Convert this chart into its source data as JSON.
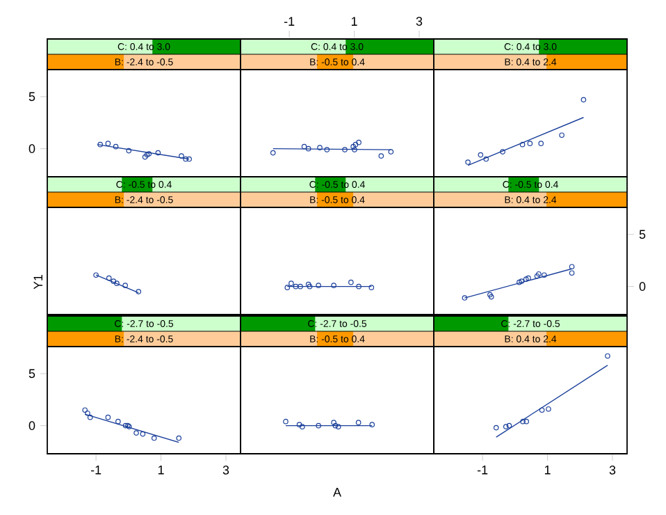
{
  "chart_data": [
    {
      "type": "scatter",
      "title": "C: 0.4 to 3.0",
      "subtitle": "B: -2.4 to -0.5",
      "xlim": [
        -2.5,
        3.45
      ],
      "ylim": [
        -2.7,
        7.6
      ],
      "yticks": [
        0,
        5
      ],
      "tick_labels": "y",
      "series": [
        {
          "marker": "circle",
          "color": "#1a3f9a",
          "x": [
            -0.87,
            -0.63,
            -0.39,
            0.01,
            0.51,
            0.57,
            0.63,
            0.91,
            1.63,
            1.76,
            1.87
          ],
          "values": [
            0.4,
            0.5,
            0.2,
            -0.2,
            -0.8,
            -0.6,
            -0.5,
            -0.4,
            -0.7,
            -1.0,
            -1.0
          ]
        },
        {
          "type": "line",
          "color": "#1a3f9a",
          "x": [
            -0.96,
            1.87
          ],
          "values": [
            0.4,
            -1.0
          ]
        }
      ]
    },
    {
      "type": "scatter",
      "title": "C: 0.4 to 3.0",
      "subtitle": "B: -0.5 to 0.4",
      "xlim": [
        -2.5,
        3.45
      ],
      "ylim": [
        -2.7,
        7.6
      ],
      "xticks": [
        -1,
        1,
        3
      ],
      "tick_labels": "x",
      "series": [
        {
          "marker": "circle",
          "color": "#1a3f9a",
          "x": [
            -1.5,
            -0.54,
            -0.41,
            -0.06,
            0.16,
            0.71,
            0.97,
            1.01,
            1.04,
            1.14,
            1.83,
            2.13
          ],
          "values": [
            -0.4,
            0.2,
            0,
            0.1,
            -0.1,
            -0.1,
            0.2,
            -0.1,
            0.4,
            0.6,
            -0.7,
            -0.3
          ]
        },
        {
          "type": "line",
          "color": "#1a3f9a",
          "x": [
            -1.5,
            2.13
          ],
          "values": [
            0,
            -0.1
          ]
        }
      ]
    },
    {
      "type": "scatter",
      "title": "C: 0.4 to 3.0",
      "subtitle": "B: 0.4 to 2.4",
      "xlim": [
        -2.5,
        3.45
      ],
      "ylim": [
        -2.7,
        7.6
      ],
      "tick_labels": false,
      "series": [
        {
          "marker": "circle",
          "color": "#1a3f9a",
          "x": [
            -1.45,
            -1.06,
            -0.89,
            -0.38,
            0.23,
            0.46,
            0.8,
            1.44,
            2.11
          ],
          "values": [
            -1.3,
            -0.6,
            -1.0,
            -0.3,
            0.4,
            0.5,
            0.5,
            1.3,
            4.7
          ]
        },
        {
          "type": "line",
          "color": "#1a3f9a",
          "x": [
            -1.45,
            2.11
          ],
          "values": [
            -1.6,
            3.0
          ]
        }
      ]
    },
    {
      "type": "scatter",
      "title": "C: -0.5 to 0.4",
      "subtitle": "B: -2.4 to -0.5",
      "ylabel": "Y1",
      "xlim": [
        -2.5,
        3.45
      ],
      "ylim": [
        -2.7,
        7.6
      ],
      "tick_labels": false,
      "series": [
        {
          "marker": "circle",
          "color": "#1a3f9a",
          "x": [
            -1.0,
            -0.6,
            -0.46,
            -0.36,
            -0.1,
            0.31
          ],
          "values": [
            1.1,
            0.8,
            0.5,
            0.3,
            0.1,
            -0.5
          ]
        },
        {
          "type": "line",
          "color": "#1a3f9a",
          "x": [
            -1.0,
            0.31
          ],
          "values": [
            1.1,
            -0.6
          ]
        }
      ]
    },
    {
      "type": "scatter",
      "title": "C: -0.5 to 0.4",
      "subtitle": "B: -0.5 to 0.4",
      "xlim": [
        -2.5,
        3.45
      ],
      "ylim": [
        -2.7,
        7.6
      ],
      "tick_labels": false,
      "series": [
        {
          "marker": "circle",
          "color": "#1a3f9a",
          "x": [
            -1.06,
            -0.94,
            -0.8,
            -0.66,
            -0.41,
            -0.37,
            -0.1,
            0.37,
            0.9,
            1.14,
            1.53
          ],
          "values": [
            -0.1,
            0.3,
            0,
            0,
            0.2,
            0,
            0.1,
            0.1,
            0.4,
            0,
            -0.1
          ]
        },
        {
          "type": "line",
          "color": "#1a3f9a",
          "x": [
            -1.06,
            1.53
          ],
          "values": [
            0,
            0
          ]
        }
      ]
    },
    {
      "type": "scatter",
      "title": "C: -0.5 to 0.4",
      "subtitle": "B: 0.4 to 2.4",
      "xlim": [
        -2.5,
        3.45
      ],
      "ylim": [
        -2.7,
        7.6
      ],
      "yticks": [
        0,
        5
      ],
      "tick_labels": "y",
      "series": [
        {
          "marker": "circle",
          "color": "#1a3f9a",
          "x": [
            -1.55,
            -0.77,
            -0.73,
            0.13,
            0.2,
            0.34,
            0.41,
            0.68,
            0.73,
            0.9,
            1.75,
            1.75
          ],
          "values": [
            -1.1,
            -0.8,
            -1.0,
            0.4,
            0.5,
            0.7,
            0.8,
            1.0,
            1.2,
            1.1,
            1.9,
            1.3
          ]
        },
        {
          "type": "line",
          "color": "#1a3f9a",
          "x": [
            -1.55,
            1.75
          ],
          "values": [
            -1.1,
            1.7
          ]
        }
      ]
    },
    {
      "type": "scatter",
      "title": "C: -2.7 to -0.5",
      "subtitle": "B: -2.4 to -0.5",
      "xlim": [
        -2.5,
        3.45
      ],
      "ylim": [
        -2.7,
        7.6
      ],
      "xticks": [
        -1,
        1,
        3
      ],
      "yticks": [
        0,
        5
      ],
      "series": [
        {
          "marker": "circle",
          "color": "#1a3f9a",
          "x": [
            -1.34,
            -1.26,
            -1.18,
            -0.63,
            -0.32,
            -0.09,
            -0.02,
            0.02,
            0.24,
            0.44,
            0.79,
            1.55
          ],
          "values": [
            1.5,
            1.2,
            0.8,
            0.8,
            0.4,
            0,
            0,
            -0.1,
            -0.7,
            -0.8,
            -1.2,
            -1.2
          ]
        },
        {
          "type": "line",
          "color": "#1a3f9a",
          "x": [
            -1.34,
            1.55
          ],
          "values": [
            1.1,
            -1.6
          ]
        }
      ]
    },
    {
      "type": "scatter",
      "title": "C: -2.7 to -0.5",
      "subtitle": "B: -0.5 to 0.4",
      "xlabel": "A",
      "xlim": [
        -2.5,
        3.45
      ],
      "ylim": [
        -2.7,
        7.6
      ],
      "tick_labels": false,
      "series": [
        {
          "marker": "circle",
          "color": "#1a3f9a",
          "x": [
            -1.11,
            -0.69,
            -0.6,
            -0.1,
            0.37,
            0.42,
            0.51,
            1.13,
            1.55
          ],
          "values": [
            0.4,
            0.1,
            -0.1,
            0,
            0.3,
            0,
            -0.1,
            0.3,
            0.1
          ]
        },
        {
          "type": "line",
          "color": "#1a3f9a",
          "x": [
            -1.11,
            1.55
          ],
          "values": [
            0,
            0
          ]
        }
      ]
    },
    {
      "type": "scatter",
      "title": "C: -2.7 to -0.5",
      "subtitle": "B: 0.4 to 2.4",
      "xlim": [
        -2.5,
        3.45
      ],
      "ylim": [
        -2.7,
        7.6
      ],
      "xticks": [
        -1,
        1,
        3
      ],
      "tick_labels": "x",
      "series": [
        {
          "marker": "circle",
          "color": "#1a3f9a",
          "x": [
            -0.58,
            -0.28,
            -0.18,
            0.24,
            0.35,
            0.83,
            1.03,
            2.85
          ],
          "values": [
            -0.2,
            -0.1,
            0,
            0.4,
            0.4,
            1.5,
            1.6,
            6.7
          ]
        },
        {
          "type": "line",
          "color": "#1a3f9a",
          "x": [
            -0.58,
            2.85
          ],
          "values": [
            -1.1,
            5.8
          ]
        }
      ]
    }
  ]
}
